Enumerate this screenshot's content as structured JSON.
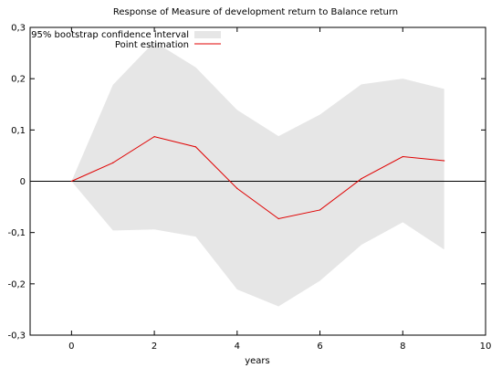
{
  "chart_data": {
    "type": "line",
    "title": "Response of Measure of development return to Balance return",
    "xlabel": "years",
    "ylabel": "",
    "xlim": [
      -1,
      10
    ],
    "ylim": [
      -0.3,
      0.3
    ],
    "x_ticks": [
      0,
      2,
      4,
      6,
      8,
      10
    ],
    "x_tick_labels": [
      "0",
      "2",
      "4",
      "6",
      "8",
      "10"
    ],
    "y_ticks": [
      0.3,
      0.2,
      0.1,
      0,
      -0.1,
      -0.2,
      -0.3
    ],
    "y_tick_labels": [
      "0,3",
      "0,2",
      "0,1",
      "0",
      "-0,1",
      "-0,2",
      "-0,3"
    ],
    "zero_line": true,
    "grid": false,
    "legend_position": "top-left",
    "x": [
      0,
      1,
      2,
      3,
      4,
      5,
      6,
      7,
      8,
      9
    ],
    "series": [
      {
        "name": "Point estimation",
        "type": "line",
        "color": "#e00000",
        "values": [
          0.0,
          0.036,
          0.087,
          0.067,
          -0.014,
          -0.073,
          -0.056,
          0.005,
          0.048,
          0.04
        ]
      }
    ],
    "band": {
      "name": "95% bootstrap confidence interval",
      "color": "#e6e6e6",
      "upper": [
        0.0,
        0.188,
        0.272,
        0.222,
        0.139,
        0.088,
        0.13,
        0.189,
        0.2,
        0.18
      ],
      "lower": [
        0.0,
        -0.096,
        -0.094,
        -0.108,
        -0.211,
        -0.244,
        -0.194,
        -0.124,
        -0.08,
        -0.133
      ]
    }
  }
}
